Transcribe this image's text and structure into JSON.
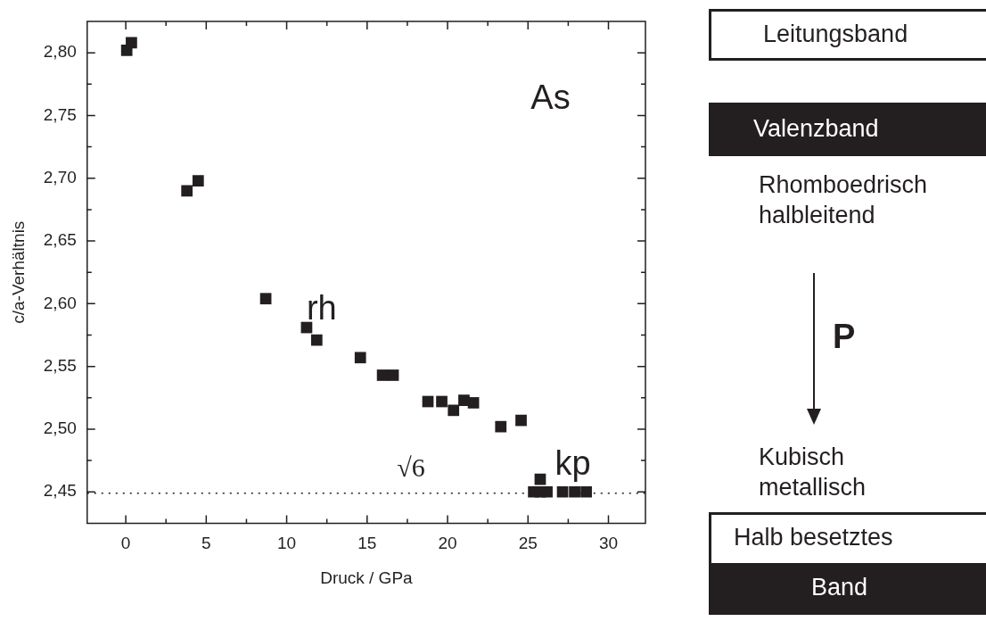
{
  "chart_data": {
    "type": "scatter",
    "xlabel": "Druck / GPa",
    "ylabel": "c/a-Verhältnis",
    "x": [
      0.06,
      0.35,
      3.8,
      4.5,
      8.7,
      11.24,
      11.87,
      14.58,
      15.96,
      16.62,
      18.78,
      19.64,
      20.37,
      21.02,
      21.61,
      23.31,
      24.57,
      25.76,
      25.35,
      25.77,
      26.18,
      27.15,
      27.9,
      28.62
    ],
    "series": [
      {
        "color": "#231f20",
        "values": [
          2.802,
          2.808,
          2.69,
          2.698,
          2.604,
          2.581,
          2.571,
          2.557,
          2.543,
          2.543,
          2.522,
          2.522,
          2.515,
          2.523,
          2.521,
          2.502,
          2.507,
          2.46,
          2.45,
          2.45,
          2.45,
          2.45,
          2.45,
          2.45
        ]
      }
    ],
    "marker": "square",
    "legend": false,
    "grid": false,
    "xlim": [
      -2.4,
      32.3
    ],
    "xticks": [
      0,
      {
        "value": 2.5,
        "label": null
      },
      5,
      {
        "value": 7.5,
        "label": null
      },
      10,
      {
        "value": 12.5,
        "label": null
      },
      15,
      {
        "value": 17.5,
        "label": null
      },
      20,
      {
        "value": 22.5,
        "label": null
      },
      25,
      {
        "value": 27.5,
        "label": null
      },
      30
    ],
    "ylim": [
      2.425,
      2.825
    ],
    "yticks": [
      {
        "value": 2.45,
        "label": "2,45"
      },
      {
        "value": 2.475,
        "label": null
      },
      {
        "value": 2.5,
        "label": "2,50"
      },
      {
        "value": 2.525,
        "label": null
      },
      {
        "value": 2.55,
        "label": "2,55"
      },
      {
        "value": 2.575,
        "label": null
      },
      {
        "value": 2.6,
        "label": "2,60"
      },
      {
        "value": 2.625,
        "label": null
      },
      {
        "value": 2.65,
        "label": "2,65"
      },
      {
        "value": 2.675,
        "label": null
      },
      {
        "value": 2.7,
        "label": "2,70"
      },
      {
        "value": 2.725,
        "label": null
      },
      {
        "value": 2.75,
        "label": "2,75"
      },
      {
        "value": 2.775,
        "label": null
      },
      {
        "value": 2.8,
        "label": "2,80"
      }
    ],
    "ref_lines": [
      {
        "axis": "y",
        "value": 2.449,
        "label": "√6",
        "line_style": "dotted",
        "color": "#231f20"
      }
    ],
    "annotations": [
      "As",
      "rh",
      "kp",
      "Leitungsband",
      "Valenzband",
      "Rhomboedrisch\nhalbleitend",
      "P",
      "Kubisch\nmetallisch",
      "Halb besetztes",
      "Band"
    ]
  }
}
